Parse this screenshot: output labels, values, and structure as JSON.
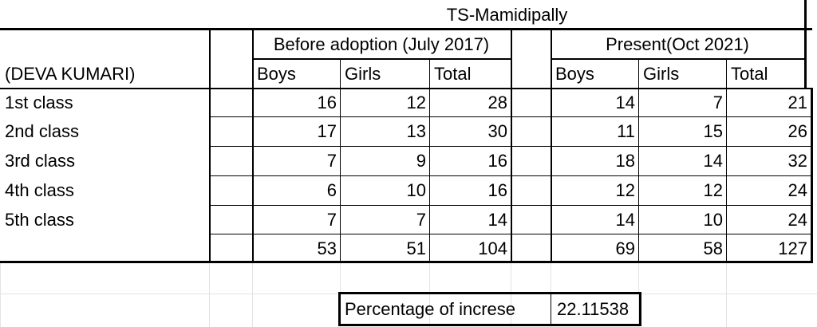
{
  "sheet": {
    "school_title": "TS-Mamidipally",
    "before_header": "Before adoption (July 2017)",
    "present_header": "Present(Oct 2021)",
    "teacher_label": "(DEVA KUMARI)",
    "before_columns": [
      "Boys",
      "Girls",
      "Total"
    ],
    "present_columns": [
      "Boys",
      "Girls",
      "Total"
    ],
    "rows": [
      {
        "label": "1st class",
        "before": [
          "16",
          "12",
          "28"
        ],
        "present": [
          "14",
          "7",
          "21"
        ]
      },
      {
        "label": "2nd class",
        "before": [
          "17",
          "13",
          "30"
        ],
        "present": [
          "11",
          "15",
          "26"
        ]
      },
      {
        "label": "3rd class",
        "before": [
          "7",
          "9",
          "16"
        ],
        "present": [
          "18",
          "14",
          "32"
        ]
      },
      {
        "label": "4th class",
        "before": [
          "6",
          "10",
          "16"
        ],
        "present": [
          "12",
          "12",
          "24"
        ]
      },
      {
        "label": "5th class",
        "before": [
          "7",
          "7",
          "14"
        ],
        "present": [
          "14",
          "10",
          "24"
        ]
      }
    ],
    "totals": {
      "label": "",
      "before": [
        "53",
        "51",
        "104"
      ],
      "present": [
        "69",
        "58",
        "127"
      ]
    },
    "increase_label": "Percentage of increse",
    "increase_value": "22.11538"
  },
  "chart_data": {
    "type": "table",
    "title": "TS-Mamidipally",
    "columns": [
      "",
      "Before adoption (July 2017) Boys",
      "Before adoption (July 2017) Girls",
      "Before adoption (July 2017) Total",
      "Present(Oct 2021) Boys",
      "Present(Oct 2021) Girls",
      "Present(Oct 2021) Total"
    ],
    "rows": [
      [
        "1st class",
        16,
        12,
        28,
        14,
        7,
        21
      ],
      [
        "2nd class",
        17,
        13,
        30,
        11,
        15,
        26
      ],
      [
        "3rd class",
        7,
        9,
        16,
        18,
        14,
        32
      ],
      [
        "4th class",
        6,
        10,
        16,
        12,
        12,
        24
      ],
      [
        "5th class",
        7,
        7,
        14,
        14,
        10,
        24
      ],
      [
        "",
        53,
        51,
        104,
        69,
        58,
        127
      ]
    ]
  }
}
